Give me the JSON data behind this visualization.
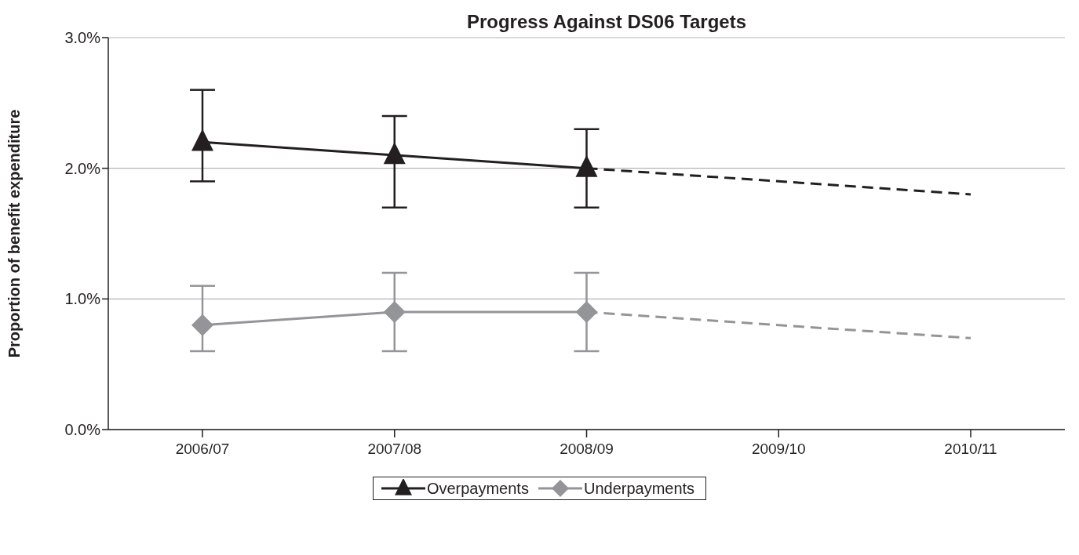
{
  "chart_data": {
    "type": "line",
    "title": "Progress Against DS06 Targets",
    "ylabel": "Proportion of benefit expenditure",
    "categories": [
      "2006/07",
      "2007/08",
      "2008/09",
      "2009/10",
      "2010/11"
    ],
    "series": [
      {
        "name": "Overpayments",
        "color": "#231f20",
        "marker": "triangle",
        "line_style": "solid",
        "values": [
          2.2,
          2.1,
          2.0,
          null,
          null
        ],
        "errors": [
          [
            1.9,
            2.6
          ],
          [
            1.7,
            2.4
          ],
          [
            1.7,
            2.3
          ],
          null,
          null
        ]
      },
      {
        "name": "Underpayments",
        "color": "#939598",
        "marker": "diamond",
        "line_style": "solid",
        "values": [
          0.8,
          0.9,
          0.9,
          null,
          null
        ],
        "errors": [
          [
            0.6,
            1.1
          ],
          [
            0.6,
            1.2
          ],
          [
            0.6,
            1.2
          ],
          null,
          null
        ]
      },
      {
        "color": "#231f20",
        "marker": "none",
        "line_style": "dashed",
        "values": [
          null,
          null,
          2.0,
          null,
          1.8
        ]
      },
      {
        "color": "#939598",
        "marker": "none",
        "line_style": "dashed",
        "values": [
          null,
          null,
          0.9,
          null,
          0.7
        ]
      }
    ],
    "ylim": [
      0,
      3
    ],
    "yticks": [
      {
        "value": 0,
        "label": "0.0%"
      },
      {
        "value": 1,
        "label": "1.0%"
      },
      {
        "value": 2,
        "label": "2.0%"
      },
      {
        "value": 3,
        "label": "3.0%"
      }
    ],
    "grid": "y",
    "legend": "bottom"
  }
}
